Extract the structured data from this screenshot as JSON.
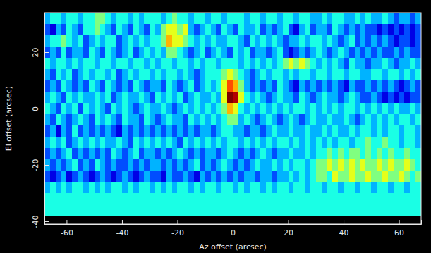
{
  "chart_data": {
    "type": "heatmap",
    "color": "jet",
    "xlabel": "Az offset (arcsec)",
    "ylabel": "El offset (arcsec)",
    "xlim": [
      -68,
      68
    ],
    "ylim": [
      -41,
      34
    ],
    "xticks": [
      -60,
      -40,
      -20,
      0,
      20,
      40,
      60
    ],
    "yticks": [
      -40,
      -20,
      0,
      20
    ],
    "zlim": [
      0,
      1
    ],
    "x_edges": [
      -68,
      -66,
      -64,
      -62,
      -60,
      -58,
      -56,
      -54,
      -52,
      -50,
      -48,
      -46,
      -44,
      -42,
      -40,
      -38,
      -36,
      -34,
      -32,
      -30,
      -28,
      -26,
      -24,
      -22,
      -20,
      -18,
      -16,
      -14,
      -12,
      -10,
      -8,
      -6,
      -4,
      -2,
      0,
      2,
      4,
      6,
      8,
      10,
      12,
      14,
      16,
      18,
      20,
      22,
      24,
      26,
      28,
      30,
      32,
      34,
      36,
      38,
      40,
      42,
      44,
      46,
      48,
      50,
      52,
      54,
      56,
      58,
      60,
      62,
      64,
      66,
      68
    ],
    "y_edges": [
      34,
      30,
      26,
      22,
      18,
      14,
      10,
      6,
      2,
      -2,
      -6,
      -10,
      -14,
      -18,
      -22,
      -26,
      -30,
      -38
    ],
    "cells": [
      [
        0.3,
        0.4,
        0.4,
        0.3,
        0.4,
        0.4,
        0.3,
        0.4,
        0.4,
        0.5,
        0.5,
        0.4,
        0.3,
        0.4,
        0.4,
        0.3,
        0.4,
        0.3,
        0.4,
        0.4,
        0.4,
        0.3,
        0.4,
        0.5,
        0.4,
        0.4,
        0.3,
        0.4,
        0.4,
        0.3,
        0.4,
        0.4,
        0.3,
        0.4,
        0.4,
        0.4,
        0.3,
        0.4,
        0.4,
        0.3,
        0.4,
        0.4,
        0.3,
        0.4,
        0.4,
        0.3,
        0.4,
        0.4,
        0.3,
        0.3,
        0.4,
        0.3,
        0.4,
        0.4,
        0.3,
        0.3,
        0.4,
        0.3,
        0.4,
        0.3,
        0.3,
        0.4,
        0.3,
        0.2,
        0.3,
        0.3,
        0.2,
        0.3
      ],
      [
        0.2,
        0.1,
        0.3,
        0.2,
        0.4,
        0.3,
        0.2,
        0.4,
        0.4,
        0.5,
        0.4,
        0.3,
        0.2,
        0.4,
        0.3,
        0.2,
        0.4,
        0.3,
        0.2,
        0.4,
        0.3,
        0.5,
        0.6,
        0.6,
        0.5,
        0.6,
        0.3,
        0.2,
        0.3,
        0.4,
        0.3,
        0.2,
        0.4,
        0.3,
        0.2,
        0.4,
        0.3,
        0.3,
        0.4,
        0.2,
        0.3,
        0.2,
        0.3,
        0.4,
        0.2,
        0.1,
        0.3,
        0.4,
        0.2,
        0.3,
        0.3,
        0.2,
        0.4,
        0.3,
        0.2,
        0.3,
        0.2,
        0.3,
        0.2,
        0.2,
        0.1,
        0.2,
        0.1,
        0.2,
        0.1,
        0.2,
        0.1,
        0.2
      ],
      [
        0.3,
        0.4,
        0.4,
        0.5,
        0.4,
        0.3,
        0.4,
        0.2,
        0.3,
        0.4,
        0.3,
        0.4,
        0.4,
        0.2,
        0.3,
        0.4,
        0.3,
        0.4,
        0.3,
        0.4,
        0.4,
        0.5,
        0.7,
        0.6,
        0.6,
        0.5,
        0.4,
        0.3,
        0.4,
        0.3,
        0.4,
        0.3,
        0.3,
        0.4,
        0.4,
        0.3,
        0.2,
        0.4,
        0.3,
        0.4,
        0.3,
        0.4,
        0.3,
        0.2,
        0.3,
        0.3,
        0.4,
        0.3,
        0.4,
        0.4,
        0.3,
        0.4,
        0.3,
        0.2,
        0.3,
        0.4,
        0.2,
        0.3,
        0.2,
        0.3,
        0.2,
        0.3,
        0.2,
        0.1,
        0.2,
        0.2,
        0.1,
        0.2
      ],
      [
        0.2,
        0.3,
        0.2,
        0.4,
        0.2,
        0.3,
        0.3,
        0.2,
        0.4,
        0.3,
        0.2,
        0.4,
        0.3,
        0.2,
        0.3,
        0.4,
        0.2,
        0.3,
        0.4,
        0.3,
        0.4,
        0.3,
        0.5,
        0.5,
        0.4,
        0.3,
        0.2,
        0.3,
        0.4,
        0.2,
        0.3,
        0.4,
        0.3,
        0.2,
        0.4,
        0.3,
        0.4,
        0.2,
        0.3,
        0.3,
        0.2,
        0.3,
        0.4,
        0.2,
        0.1,
        0.2,
        0.3,
        0.2,
        0.3,
        0.4,
        0.3,
        0.2,
        0.3,
        0.4,
        0.3,
        0.2,
        0.3,
        0.2,
        0.3,
        0.2,
        0.3,
        0.2,
        0.2,
        0.3,
        0.2,
        0.3,
        0.2,
        0.2
      ],
      [
        0.4,
        0.3,
        0.4,
        0.4,
        0.3,
        0.4,
        0.3,
        0.4,
        0.4,
        0.3,
        0.4,
        0.4,
        0.3,
        0.4,
        0.4,
        0.3,
        0.4,
        0.4,
        0.3,
        0.4,
        0.3,
        0.4,
        0.4,
        0.3,
        0.4,
        0.4,
        0.3,
        0.4,
        0.3,
        0.4,
        0.4,
        0.3,
        0.4,
        0.4,
        0.4,
        0.3,
        0.4,
        0.3,
        0.4,
        0.3,
        0.4,
        0.3,
        0.4,
        0.5,
        0.6,
        0.5,
        0.6,
        0.5,
        0.4,
        0.3,
        0.4,
        0.3,
        0.4,
        0.3,
        0.2,
        0.4,
        0.3,
        0.3,
        0.2,
        0.3,
        0.3,
        0.4,
        0.3,
        0.2,
        0.3,
        0.3,
        0.4,
        0.3
      ],
      [
        0.3,
        0.2,
        0.4,
        0.3,
        0.4,
        0.2,
        0.3,
        0.4,
        0.3,
        0.4,
        0.4,
        0.3,
        0.4,
        0.2,
        0.3,
        0.4,
        0.3,
        0.4,
        0.4,
        0.3,
        0.4,
        0.3,
        0.4,
        0.4,
        0.3,
        0.4,
        0.3,
        0.2,
        0.3,
        0.4,
        0.4,
        0.4,
        0.5,
        0.6,
        0.5,
        0.4,
        0.3,
        0.2,
        0.3,
        0.4,
        0.3,
        0.4,
        0.4,
        0.3,
        0.4,
        0.3,
        0.4,
        0.4,
        0.3,
        0.4,
        0.4,
        0.3,
        0.4,
        0.4,
        0.3,
        0.4,
        0.4,
        0.3,
        0.3,
        0.4,
        0.4,
        0.3,
        0.4,
        0.4,
        0.3,
        0.4,
        0.3,
        0.4
      ],
      [
        0.2,
        0.3,
        0.2,
        0.4,
        0.3,
        0.2,
        0.3,
        0.2,
        0.4,
        0.3,
        0.2,
        0.4,
        0.3,
        0.2,
        0.3,
        0.2,
        0.4,
        0.3,
        0.2,
        0.3,
        0.3,
        0.2,
        0.4,
        0.3,
        0.2,
        0.3,
        0.4,
        0.2,
        0.3,
        0.4,
        0.3,
        0.4,
        0.6,
        0.8,
        0.7,
        0.5,
        0.3,
        0.2,
        0.3,
        0.2,
        0.3,
        0.2,
        0.4,
        0.3,
        0.2,
        0.1,
        0.3,
        0.2,
        0.3,
        0.2,
        0.3,
        0.2,
        0.3,
        0.2,
        0.1,
        0.3,
        0.2,
        0.2,
        0.3,
        0.2,
        0.3,
        0.2,
        0.3,
        0.2,
        0.1,
        0.2,
        0.3,
        0.2
      ],
      [
        0.3,
        0.4,
        0.3,
        0.2,
        0.4,
        0.3,
        0.4,
        0.3,
        0.3,
        0.4,
        0.3,
        0.4,
        0.2,
        0.3,
        0.4,
        0.3,
        0.3,
        0.4,
        0.3,
        0.2,
        0.4,
        0.3,
        0.4,
        0.3,
        0.4,
        0.2,
        0.3,
        0.4,
        0.3,
        0.3,
        0.4,
        0.3,
        0.6,
        1.0,
        0.95,
        0.6,
        0.4,
        0.3,
        0.4,
        0.3,
        0.2,
        0.3,
        0.4,
        0.3,
        0.3,
        0.2,
        0.4,
        0.3,
        0.2,
        0.3,
        0.4,
        0.3,
        0.3,
        0.2,
        0.3,
        0.4,
        0.3,
        0.2,
        0.2,
        0.3,
        0.2,
        0.1,
        0.2,
        0.1,
        0.2,
        0.1,
        0.2,
        0.2
      ],
      [
        0.4,
        0.3,
        0.2,
        0.4,
        0.3,
        0.4,
        0.2,
        0.4,
        0.3,
        0.4,
        0.3,
        0.2,
        0.4,
        0.3,
        0.4,
        0.3,
        0.2,
        0.3,
        0.4,
        0.3,
        0.3,
        0.4,
        0.3,
        0.2,
        0.3,
        0.4,
        0.3,
        0.4,
        0.3,
        0.4,
        0.3,
        0.4,
        0.5,
        0.7,
        0.6,
        0.4,
        0.3,
        0.4,
        0.3,
        0.4,
        0.3,
        0.4,
        0.3,
        0.4,
        0.3,
        0.4,
        0.4,
        0.3,
        0.4,
        0.3,
        0.4,
        0.3,
        0.4,
        0.3,
        0.4,
        0.4,
        0.3,
        0.4,
        0.3,
        0.4,
        0.3,
        0.4,
        0.3,
        0.4,
        0.3,
        0.3,
        0.4,
        0.3
      ],
      [
        0.3,
        0.2,
        0.4,
        0.3,
        0.2,
        0.3,
        0.4,
        0.3,
        0.2,
        0.4,
        0.3,
        0.4,
        0.3,
        0.2,
        0.4,
        0.3,
        0.3,
        0.2,
        0.4,
        0.3,
        0.2,
        0.3,
        0.4,
        0.3,
        0.3,
        0.2,
        0.4,
        0.3,
        0.4,
        0.3,
        0.4,
        0.3,
        0.4,
        0.5,
        0.5,
        0.3,
        0.4,
        0.3,
        0.2,
        0.3,
        0.4,
        0.3,
        0.2,
        0.3,
        0.4,
        0.3,
        0.2,
        0.3,
        0.4,
        0.3,
        0.3,
        0.4,
        0.3,
        0.3,
        0.4,
        0.3,
        0.2,
        0.3,
        0.4,
        0.3,
        0.4,
        0.3,
        0.4,
        0.3,
        0.4,
        0.4,
        0.3,
        0.4
      ],
      [
        0.2,
        0.3,
        0.1,
        0.3,
        0.2,
        0.4,
        0.2,
        0.3,
        0.2,
        0.3,
        0.2,
        0.3,
        0.2,
        0.1,
        0.3,
        0.2,
        0.3,
        0.2,
        0.3,
        0.2,
        0.3,
        0.2,
        0.3,
        0.2,
        0.3,
        0.2,
        0.3,
        0.2,
        0.3,
        0.3,
        0.2,
        0.3,
        0.4,
        0.4,
        0.3,
        0.3,
        0.2,
        0.3,
        0.3,
        0.2,
        0.3,
        0.4,
        0.3,
        0.3,
        0.4,
        0.3,
        0.3,
        0.4,
        0.3,
        0.3,
        0.4,
        0.3,
        0.4,
        0.3,
        0.3,
        0.4,
        0.3,
        0.4,
        0.4,
        0.3,
        0.4,
        0.3,
        0.4,
        0.4,
        0.3,
        0.4,
        0.4,
        0.3
      ],
      [
        0.3,
        0.4,
        0.3,
        0.4,
        0.2,
        0.3,
        0.4,
        0.3,
        0.4,
        0.3,
        0.4,
        0.3,
        0.3,
        0.4,
        0.3,
        0.2,
        0.4,
        0.3,
        0.4,
        0.3,
        0.4,
        0.3,
        0.4,
        0.3,
        0.2,
        0.4,
        0.3,
        0.4,
        0.3,
        0.4,
        0.3,
        0.4,
        0.3,
        0.4,
        0.4,
        0.3,
        0.4,
        0.3,
        0.4,
        0.3,
        0.4,
        0.3,
        0.4,
        0.4,
        0.3,
        0.4,
        0.3,
        0.4,
        0.3,
        0.4,
        0.3,
        0.4,
        0.3,
        0.4,
        0.4,
        0.3,
        0.4,
        0.4,
        0.5,
        0.4,
        0.4,
        0.5,
        0.4,
        0.4,
        0.3,
        0.4,
        0.4,
        0.3
      ],
      [
        0.2,
        0.3,
        0.2,
        0.3,
        0.4,
        0.2,
        0.3,
        0.2,
        0.3,
        0.2,
        0.3,
        0.2,
        0.4,
        0.3,
        0.2,
        0.3,
        0.4,
        0.2,
        0.3,
        0.3,
        0.2,
        0.3,
        0.2,
        0.3,
        0.4,
        0.3,
        0.2,
        0.3,
        0.2,
        0.3,
        0.3,
        0.2,
        0.3,
        0.4,
        0.3,
        0.2,
        0.3,
        0.2,
        0.3,
        0.4,
        0.3,
        0.2,
        0.3,
        0.3,
        0.4,
        0.3,
        0.3,
        0.4,
        0.3,
        0.4,
        0.4,
        0.5,
        0.4,
        0.5,
        0.4,
        0.5,
        0.5,
        0.4,
        0.5,
        0.4,
        0.5,
        0.4,
        0.5,
        0.4,
        0.4,
        0.5,
        0.4,
        0.4
      ],
      [
        0.3,
        0.2,
        0.3,
        0.2,
        0.3,
        0.4,
        0.2,
        0.3,
        0.2,
        0.4,
        0.3,
        0.2,
        0.3,
        0.2,
        0.2,
        0.3,
        0.2,
        0.3,
        0.2,
        0.3,
        0.3,
        0.2,
        0.3,
        0.2,
        0.3,
        0.2,
        0.3,
        0.4,
        0.2,
        0.3,
        0.2,
        0.3,
        0.4,
        0.3,
        0.2,
        0.3,
        0.2,
        0.3,
        0.4,
        0.3,
        0.3,
        0.4,
        0.3,
        0.4,
        0.3,
        0.4,
        0.4,
        0.3,
        0.4,
        0.5,
        0.5,
        0.6,
        0.5,
        0.6,
        0.5,
        0.6,
        0.5,
        0.6,
        0.5,
        0.5,
        0.6,
        0.5,
        0.6,
        0.5,
        0.5,
        0.6,
        0.5,
        0.4
      ],
      [
        0.2,
        0.1,
        0.2,
        0.3,
        0.1,
        0.2,
        0.3,
        0.2,
        0.1,
        0.2,
        0.3,
        0.2,
        0.1,
        0.2,
        0.3,
        0.2,
        0.1,
        0.2,
        0.3,
        0.2,
        0.2,
        0.1,
        0.3,
        0.2,
        0.2,
        0.3,
        0.2,
        0.1,
        0.3,
        0.2,
        0.3,
        0.2,
        0.3,
        0.2,
        0.3,
        0.2,
        0.3,
        0.3,
        0.2,
        0.3,
        0.3,
        0.2,
        0.3,
        0.3,
        0.4,
        0.3,
        0.4,
        0.3,
        0.4,
        0.5,
        0.5,
        0.4,
        0.6,
        0.5,
        0.5,
        0.6,
        0.5,
        0.5,
        0.6,
        0.5,
        0.5,
        0.6,
        0.5,
        0.5,
        0.6,
        0.5,
        0.4,
        0.5
      ],
      [
        0.3,
        0.4,
        0.3,
        0.4,
        0.3,
        0.4,
        0.4,
        0.3,
        0.4,
        0.3,
        0.4,
        0.3,
        0.4,
        0.4,
        0.3,
        0.4,
        0.3,
        0.4,
        0.4,
        0.3,
        0.4,
        0.3,
        0.4,
        0.3,
        0.4,
        0.4,
        0.3,
        0.4,
        0.3,
        0.4,
        0.4,
        0.3,
        0.4,
        0.4,
        0.3,
        0.4,
        0.3,
        0.4,
        0.4,
        0.3,
        0.4,
        0.3,
        0.4,
        0.4,
        0.3,
        0.4,
        0.4,
        0.3,
        0.4,
        0.4,
        0.3,
        0.4,
        0.4,
        0.3,
        0.4,
        0.4,
        0.3,
        0.4,
        0.4,
        0.3,
        0.4,
        0.4,
        0.3,
        0.4,
        0.4,
        0.3,
        0.4,
        0.4
      ],
      [
        0.4,
        0.4,
        0.4,
        0.4,
        0.4,
        0.4,
        0.4,
        0.4,
        0.4,
        0.4,
        0.4,
        0.4,
        0.4,
        0.4,
        0.4,
        0.4,
        0.4,
        0.4,
        0.4,
        0.4,
        0.4,
        0.4,
        0.4,
        0.4,
        0.4,
        0.4,
        0.4,
        0.4,
        0.4,
        0.4,
        0.4,
        0.4,
        0.4,
        0.4,
        0.4,
        0.4,
        0.4,
        0.4,
        0.4,
        0.4,
        0.4,
        0.4,
        0.4,
        0.4,
        0.4,
        0.4,
        0.4,
        0.4,
        0.4,
        0.4,
        0.4,
        0.4,
        0.4,
        0.4,
        0.4,
        0.4,
        0.4,
        0.4,
        0.4,
        0.4,
        0.4,
        0.4,
        0.4,
        0.4,
        0.4,
        0.4,
        0.4,
        0.4
      ]
    ]
  }
}
